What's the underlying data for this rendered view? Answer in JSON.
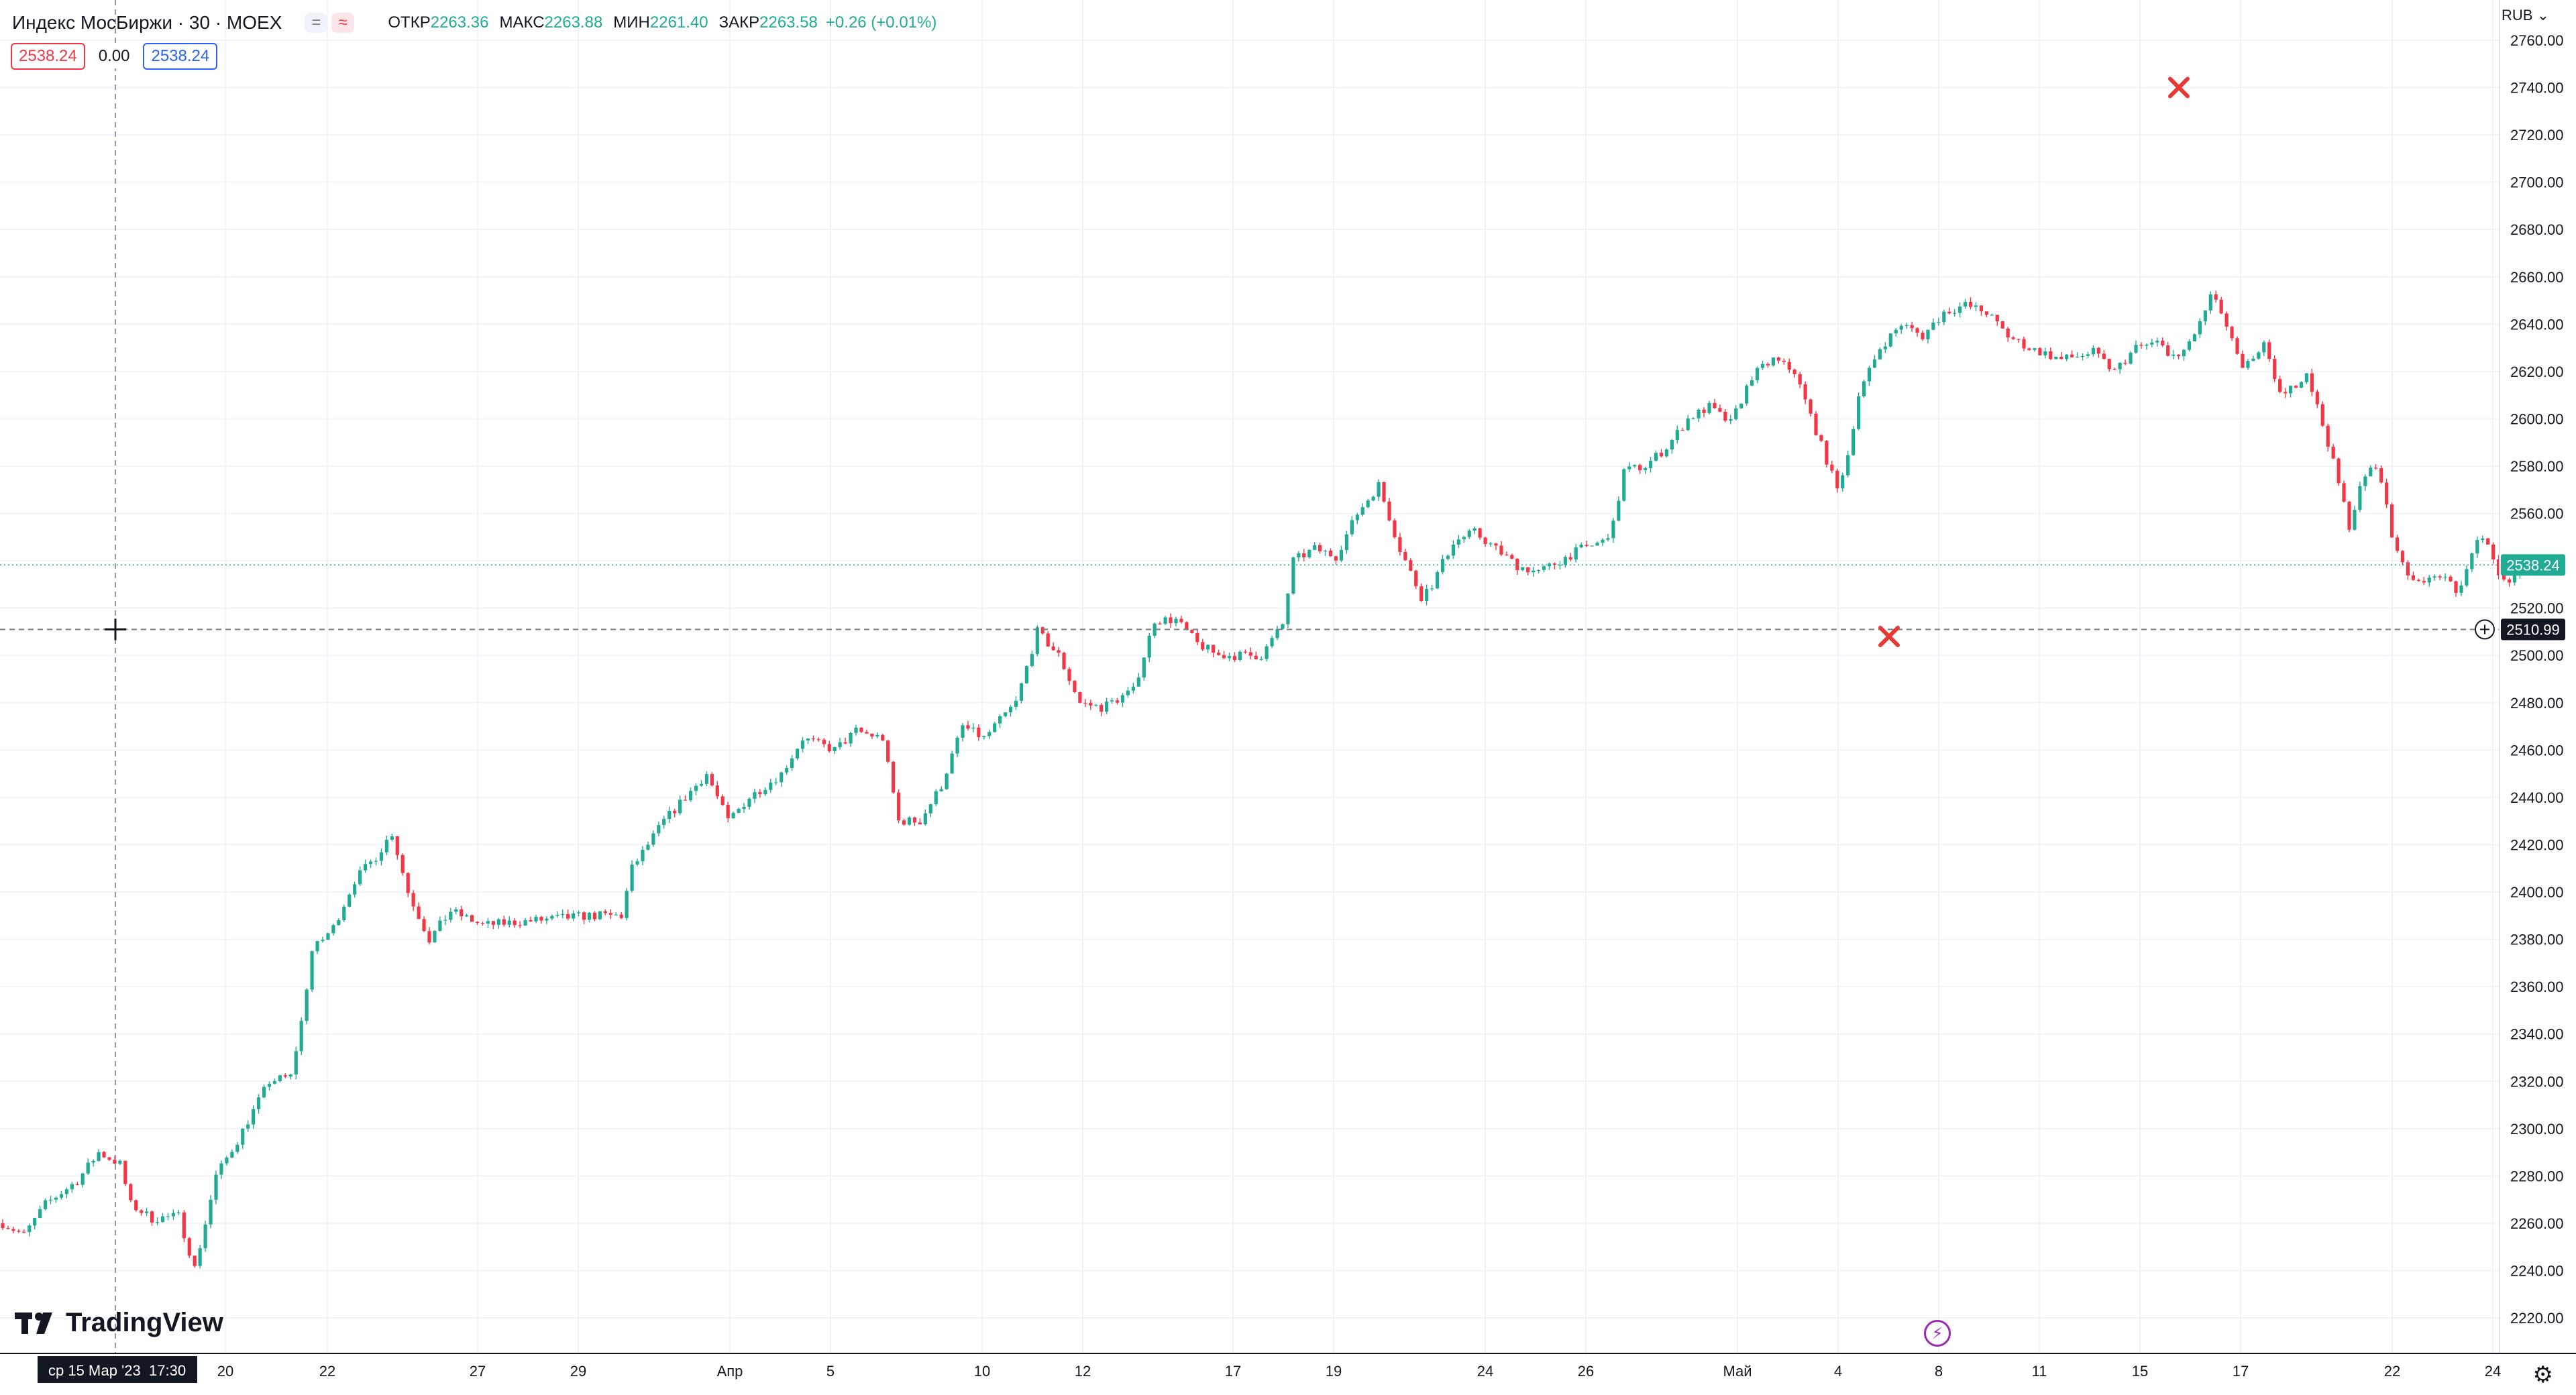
{
  "header": {
    "title": "Индекс МосБиржи · 30 · MOEX",
    "badge_a": "=",
    "badge_b": "≈",
    "open_label": "ОТКР",
    "open_value": "2263.36",
    "high_label": "МАКС",
    "high_value": "2263.88",
    "low_label": "МИН",
    "low_value": "2261.40",
    "close_label": "ЗАКР",
    "close_value": "2263.58",
    "change": "+0.26 (+0.01%)",
    "bid": "2538.24",
    "spread": "0.00",
    "ask": "2538.24"
  },
  "currency": "RUB",
  "colors": {
    "up": "#22ab94",
    "down": "#f23645",
    "grid": "#f0f3fa",
    "text": "#131722",
    "marker": "#e53935"
  },
  "chart_data": {
    "type": "candlestick",
    "symbol": "Индекс МосБиржи",
    "interval": "30",
    "ylim": [
      2205,
      2777
    ],
    "y_ticks": [
      "2220.00",
      "2240.00",
      "2260.00",
      "2280.00",
      "2300.00",
      "2320.00",
      "2340.00",
      "2360.00",
      "2380.00",
      "2400.00",
      "2420.00",
      "2440.00",
      "2460.00",
      "2480.00",
      "2500.00",
      "2520.00",
      "2540.00",
      "2560.00",
      "2580.00",
      "2600.00",
      "2620.00",
      "2640.00",
      "2660.00",
      "2680.00",
      "2700.00",
      "2720.00",
      "2740.00",
      "2760.00"
    ],
    "x_ticks": [
      "ср 15 Мар '23",
      "17:30",
      "20",
      "22",
      "27",
      "29",
      "Апр",
      "5",
      "10",
      "12",
      "17",
      "19",
      "24",
      "26",
      "Май",
      "4",
      "8",
      "11",
      "15",
      "17",
      "22",
      "24"
    ],
    "last_price_label": "2538.24",
    "last_price": 2538.24,
    "cursor_price_label": "2510.99",
    "cursor_price": 2510.99,
    "closes": [
      {
        "x": 0,
        "y": 2260
      },
      {
        "x": 4,
        "y": 2255
      },
      {
        "x": 8,
        "y": 2268
      },
      {
        "x": 14,
        "y": 2278
      },
      {
        "x": 18,
        "y": 2290
      },
      {
        "x": 22,
        "y": 2285
      },
      {
        "x": 24,
        "y": 2268
      },
      {
        "x": 28,
        "y": 2262
      },
      {
        "x": 33,
        "y": 2263
      },
      {
        "x": 36,
        "y": 2241
      },
      {
        "x": 38,
        "y": 2260
      },
      {
        "x": 40,
        "y": 2280
      },
      {
        "x": 44,
        "y": 2295
      },
      {
        "x": 50,
        "y": 2320
      },
      {
        "x": 54,
        "y": 2322
      },
      {
        "x": 56,
        "y": 2345
      },
      {
        "x": 58,
        "y": 2375
      },
      {
        "x": 62,
        "y": 2385
      },
      {
        "x": 66,
        "y": 2405
      },
      {
        "x": 70,
        "y": 2415
      },
      {
        "x": 73,
        "y": 2425
      },
      {
        "x": 76,
        "y": 2400
      },
      {
        "x": 80,
        "y": 2380
      },
      {
        "x": 84,
        "y": 2392
      },
      {
        "x": 90,
        "y": 2386
      },
      {
        "x": 100,
        "y": 2388
      },
      {
        "x": 110,
        "y": 2390
      },
      {
        "x": 116,
        "y": 2390
      },
      {
        "x": 118,
        "y": 2410
      },
      {
        "x": 124,
        "y": 2430
      },
      {
        "x": 128,
        "y": 2440
      },
      {
        "x": 132,
        "y": 2450
      },
      {
        "x": 136,
        "y": 2430
      },
      {
        "x": 140,
        "y": 2440
      },
      {
        "x": 146,
        "y": 2450
      },
      {
        "x": 150,
        "y": 2465
      },
      {
        "x": 156,
        "y": 2460
      },
      {
        "x": 160,
        "y": 2468
      },
      {
        "x": 165,
        "y": 2465
      },
      {
        "x": 168,
        "y": 2430
      },
      {
        "x": 172,
        "y": 2430
      },
      {
        "x": 176,
        "y": 2445
      },
      {
        "x": 180,
        "y": 2470
      },
      {
        "x": 184,
        "y": 2465
      },
      {
        "x": 190,
        "y": 2480
      },
      {
        "x": 194,
        "y": 2510
      },
      {
        "x": 198,
        "y": 2500
      },
      {
        "x": 202,
        "y": 2480
      },
      {
        "x": 206,
        "y": 2478
      },
      {
        "x": 212,
        "y": 2485
      },
      {
        "x": 216,
        "y": 2515
      },
      {
        "x": 220,
        "y": 2515
      },
      {
        "x": 224,
        "y": 2505
      },
      {
        "x": 228,
        "y": 2500
      },
      {
        "x": 232,
        "y": 2500
      },
      {
        "x": 236,
        "y": 2500
      },
      {
        "x": 240,
        "y": 2513
      },
      {
        "x": 242,
        "y": 2540
      },
      {
        "x": 246,
        "y": 2545
      },
      {
        "x": 250,
        "y": 2542
      },
      {
        "x": 254,
        "y": 2560
      },
      {
        "x": 258,
        "y": 2572
      },
      {
        "x": 262,
        "y": 2545
      },
      {
        "x": 266,
        "y": 2525
      },
      {
        "x": 268,
        "y": 2530
      },
      {
        "x": 272,
        "y": 2548
      },
      {
        "x": 276,
        "y": 2552
      },
      {
        "x": 280,
        "y": 2545
      },
      {
        "x": 284,
        "y": 2538
      },
      {
        "x": 288,
        "y": 2535
      },
      {
        "x": 292,
        "y": 2540
      },
      {
        "x": 296,
        "y": 2545
      },
      {
        "x": 300,
        "y": 2548
      },
      {
        "x": 302,
        "y": 2555
      },
      {
        "x": 304,
        "y": 2578
      },
      {
        "x": 308,
        "y": 2580
      },
      {
        "x": 312,
        "y": 2588
      },
      {
        "x": 316,
        "y": 2600
      },
      {
        "x": 320,
        "y": 2605
      },
      {
        "x": 324,
        "y": 2598
      },
      {
        "x": 328,
        "y": 2618
      },
      {
        "x": 332,
        "y": 2625
      },
      {
        "x": 336,
        "y": 2620
      },
      {
        "x": 340,
        "y": 2595
      },
      {
        "x": 344,
        "y": 2570
      },
      {
        "x": 346,
        "y": 2585
      },
      {
        "x": 348,
        "y": 2610
      },
      {
        "x": 352,
        "y": 2630
      },
      {
        "x": 356,
        "y": 2640
      },
      {
        "x": 360,
        "y": 2635
      },
      {
        "x": 364,
        "y": 2645
      },
      {
        "x": 368,
        "y": 2648
      },
      {
        "x": 372,
        "y": 2645
      },
      {
        "x": 376,
        "y": 2635
      },
      {
        "x": 380,
        "y": 2630
      },
      {
        "x": 386,
        "y": 2625
      },
      {
        "x": 392,
        "y": 2628
      },
      {
        "x": 396,
        "y": 2620
      },
      {
        "x": 400,
        "y": 2630
      },
      {
        "x": 404,
        "y": 2632
      },
      {
        "x": 408,
        "y": 2625
      },
      {
        "x": 412,
        "y": 2640
      },
      {
        "x": 414,
        "y": 2652
      },
      {
        "x": 416,
        "y": 2645
      },
      {
        "x": 420,
        "y": 2620
      },
      {
        "x": 424,
        "y": 2632
      },
      {
        "x": 426,
        "y": 2615
      },
      {
        "x": 428,
        "y": 2610
      },
      {
        "x": 432,
        "y": 2620
      },
      {
        "x": 436,
        "y": 2590
      },
      {
        "x": 440,
        "y": 2555
      },
      {
        "x": 442,
        "y": 2570
      },
      {
        "x": 444,
        "y": 2580
      },
      {
        "x": 446,
        "y": 2575
      },
      {
        "x": 448,
        "y": 2550
      },
      {
        "x": 452,
        "y": 2530
      },
      {
        "x": 456,
        "y": 2535
      },
      {
        "x": 460,
        "y": 2528
      },
      {
        "x": 462,
        "y": 2535
      },
      {
        "x": 464,
        "y": 2550
      },
      {
        "x": 466,
        "y": 2545
      },
      {
        "x": 468,
        "y": 2535
      },
      {
        "x": 470,
        "y": 2530
      },
      {
        "x": 473,
        "y": 2538
      }
    ],
    "markers": [
      {
        "type": "cross",
        "x_bar": 1006,
        "price": 2508
      },
      {
        "type": "cross",
        "x_bar": 1116,
        "price": 2740
      }
    ]
  }
}
